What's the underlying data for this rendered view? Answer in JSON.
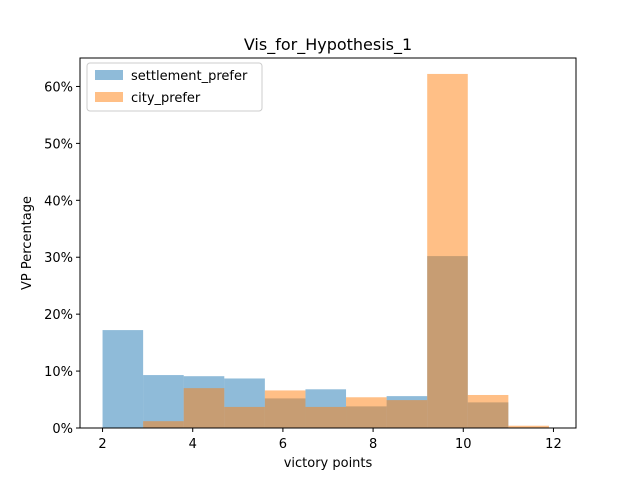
{
  "chart_data": {
    "type": "bar",
    "title": "Vis_for_Hypothesis_1",
    "xlabel": "victory points",
    "ylabel": "VP Percentage",
    "xlim": [
      1.5,
      12.5
    ],
    "ylim": [
      0,
      65
    ],
    "xticks": [
      2,
      4,
      6,
      8,
      10,
      12
    ],
    "yticks": [
      0,
      10,
      20,
      30,
      40,
      50,
      60
    ],
    "ytick_format": "percent",
    "legend_position": "top-left",
    "bin_edges": [
      2,
      2.9,
      3.8,
      4.7,
      5.6,
      6.5,
      7.4,
      8.3,
      9.2,
      10.1,
      11.0,
      11.9
    ],
    "series": [
      {
        "name": "settlement_prefer",
        "color": "#1f77b4",
        "values": [
          17.2,
          9.3,
          9.1,
          8.7,
          5.2,
          6.8,
          3.8,
          5.6,
          30.2,
          4.5,
          0
        ]
      },
      {
        "name": "city_prefer",
        "color": "#ff7f0e",
        "values": [
          0,
          1.2,
          7.0,
          3.7,
          6.6,
          3.7,
          5.4,
          4.9,
          62.2,
          5.8,
          0.4
        ]
      }
    ]
  }
}
